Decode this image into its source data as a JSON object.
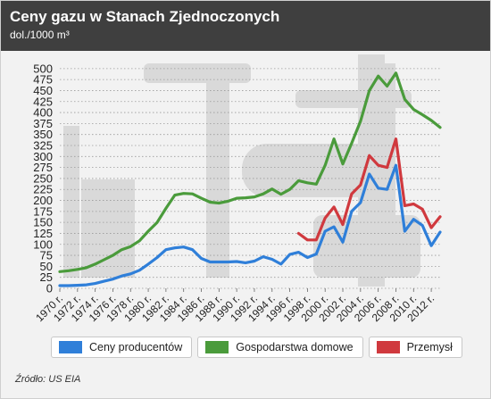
{
  "header": {
    "title": "Ceny gazu w Stanach Zjednoczonych",
    "subtitle": "dol./1000 m³"
  },
  "source": "Źródło: US EIA",
  "colors": {
    "header_bg": "#3f3f3f",
    "grid": "#9a9a9a",
    "axis_text": "#222222",
    "watermark": "#d7d7d7"
  },
  "chart_data": {
    "type": "line",
    "title": "Ceny gazu w Stanach Zjednoczonych",
    "ylabel": "dol./1000 m³",
    "ylim": [
      0,
      520
    ],
    "yticks": [
      0,
      25,
      50,
      75,
      100,
      125,
      150,
      175,
      200,
      225,
      250,
      275,
      300,
      325,
      350,
      375,
      400,
      425,
      450,
      475,
      500
    ],
    "xlim": [
      1970,
      2013
    ],
    "xticks": [
      "1970 r.",
      "1972 r.",
      "1974 r.",
      "1976 r.",
      "1978 r.",
      "1980 r.",
      "1982 r.",
      "1984 r.",
      "1986 r.",
      "1988 r.",
      "1990 r.",
      "1992 r.",
      "1994 r.",
      "1996 r.",
      "1998 r.",
      "2000 r.",
      "2002 r.",
      "2004 r.",
      "2006 r.",
      "2008 r.",
      "2010 r.",
      "2012 r."
    ],
    "grid": true,
    "legend": "bottom",
    "series": [
      {
        "name": "Ceny producentów",
        "color": "#2f7fd9",
        "x": [
          1970,
          1971,
          1972,
          1973,
          1974,
          1975,
          1976,
          1977,
          1978,
          1979,
          1980,
          1981,
          1982,
          1983,
          1984,
          1985,
          1986,
          1987,
          1988,
          1989,
          1990,
          1991,
          1992,
          1993,
          1994,
          1995,
          1996,
          1997,
          1998,
          1999,
          2000,
          2001,
          2002,
          2003,
          2004,
          2005,
          2006,
          2007,
          2008,
          2009,
          2010,
          2011,
          2012,
          2013
        ],
        "values": [
          6,
          6,
          7,
          8,
          11,
          16,
          21,
          28,
          33,
          41,
          55,
          70,
          88,
          92,
          94,
          88,
          68,
          60,
          60,
          60,
          61,
          58,
          62,
          72,
          66,
          55,
          77,
          82,
          70,
          78,
          130,
          140,
          105,
          175,
          195,
          260,
          228,
          225,
          280,
          130,
          157,
          143,
          97,
          128
        ]
      },
      {
        "name": "Gospodarstwa domowe",
        "color": "#4a9b3b",
        "x": [
          1970,
          1971,
          1972,
          1973,
          1974,
          1975,
          1976,
          1977,
          1978,
          1979,
          1980,
          1981,
          1982,
          1983,
          1984,
          1985,
          1986,
          1987,
          1988,
          1989,
          1990,
          1991,
          1992,
          1993,
          1994,
          1995,
          1996,
          1997,
          1998,
          1999,
          2000,
          2001,
          2002,
          2003,
          2004,
          2005,
          2006,
          2007,
          2008,
          2009,
          2010,
          2011,
          2012,
          2013
        ],
        "values": [
          38,
          40,
          43,
          47,
          55,
          65,
          75,
          88,
          95,
          108,
          130,
          150,
          182,
          212,
          216,
          215,
          205,
          196,
          194,
          198,
          205,
          206,
          208,
          215,
          226,
          214,
          225,
          245,
          240,
          237,
          280,
          340,
          283,
          330,
          380,
          450,
          483,
          460,
          490,
          430,
          407,
          395,
          382,
          366
        ]
      },
      {
        "name": "Przemysł",
        "color": "#d0393e",
        "x": [
          1997,
          1998,
          1999,
          2000,
          2001,
          2002,
          2003,
          2004,
          2005,
          2006,
          2007,
          2008,
          2009,
          2010,
          2011,
          2012,
          2013
        ],
        "values": [
          125,
          110,
          110,
          160,
          185,
          145,
          215,
          235,
          302,
          280,
          275,
          340,
          188,
          192,
          180,
          138,
          163
        ]
      }
    ]
  }
}
